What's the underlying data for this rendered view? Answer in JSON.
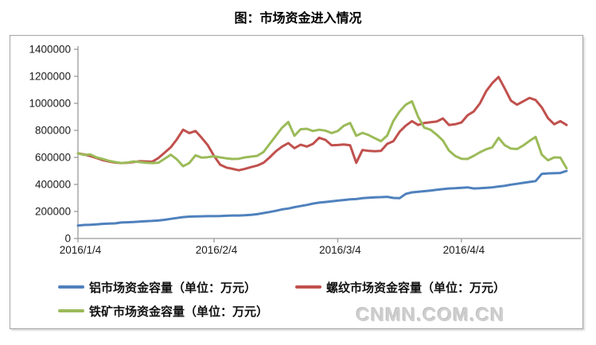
{
  "page": {
    "title": "图：市场资金进入情况",
    "watermark": "CNMN.COM.CN"
  },
  "chart_data": {
    "type": "line",
    "title": "图：市场资金进入情况",
    "legend_position": "bottom",
    "grid": false,
    "x_axis": {
      "tick_labels": [
        "2016/1/4",
        "2016/2/4",
        "2016/3/4",
        "2016/4/4"
      ],
      "tick_indices": [
        0,
        22,
        42,
        62
      ],
      "num_points": 80
    },
    "y_axis": {
      "min": 0,
      "max": 1400000,
      "ticks": [
        0,
        200000,
        400000,
        600000,
        800000,
        1000000,
        1200000,
        1400000
      ]
    },
    "series": [
      {
        "id": "aluminum",
        "name": "铝市场资金容量（单位：万元）",
        "color": "#4F81BD",
        "values": [
          95000,
          100000,
          102000,
          105000,
          108000,
          110000,
          112000,
          118000,
          120000,
          122000,
          125000,
          128000,
          130000,
          133000,
          138000,
          145000,
          152000,
          158000,
          162000,
          163000,
          164000,
          165000,
          165000,
          166000,
          168000,
          170000,
          170000,
          172000,
          175000,
          180000,
          188000,
          196000,
          205000,
          215000,
          222000,
          232000,
          240000,
          248000,
          258000,
          265000,
          270000,
          275000,
          280000,
          285000,
          290000,
          292000,
          298000,
          302000,
          305000,
          306000,
          308000,
          300000,
          298000,
          330000,
          341000,
          346000,
          350000,
          355000,
          360000,
          365000,
          370000,
          372000,
          375000,
          378000,
          370000,
          372000,
          375000,
          378000,
          385000,
          390000,
          398000,
          405000,
          412000,
          418000,
          425000,
          478000,
          482000,
          483000,
          485000,
          500000
        ]
      },
      {
        "id": "rebar",
        "name": "螺纹市场资金容量（单位：万元）",
        "color": "#C0504D",
        "values": [
          630000,
          622000,
          610000,
          595000,
          580000,
          570000,
          562000,
          558000,
          560000,
          565000,
          572000,
          570000,
          568000,
          595000,
          635000,
          675000,
          735000,
          805000,
          780000,
          795000,
          745000,
          690000,
          610000,
          545000,
          525000,
          515000,
          505000,
          515000,
          528000,
          540000,
          560000,
          600000,
          645000,
          680000,
          706000,
          668000,
          694000,
          680000,
          700000,
          745000,
          730000,
          690000,
          692000,
          695000,
          690000,
          560000,
          655000,
          648000,
          645000,
          648000,
          700000,
          720000,
          790000,
          835000,
          868000,
          840000,
          855000,
          860000,
          865000,
          888000,
          840000,
          845000,
          858000,
          912000,
          940000,
          1000000,
          1090000,
          1150000,
          1195000,
          1110000,
          1020000,
          990000,
          1015000,
          1040000,
          1025000,
          970000,
          890000,
          845000,
          868000,
          840000
        ]
      },
      {
        "id": "iron-ore",
        "name": "铁矿市场资金容量（单位：万元）",
        "color": "#9BBB59",
        "values": [
          630000,
          618000,
          622000,
          600000,
          588000,
          575000,
          565000,
          558000,
          562000,
          570000,
          565000,
          560000,
          558000,
          560000,
          590000,
          620000,
          585000,
          535000,
          558000,
          615000,
          598000,
          602000,
          608000,
          600000,
          593000,
          588000,
          590000,
          600000,
          606000,
          612000,
          640000,
          700000,
          760000,
          820000,
          862000,
          760000,
          808000,
          812000,
          795000,
          805000,
          798000,
          780000,
          795000,
          835000,
          855000,
          760000,
          782000,
          765000,
          742000,
          720000,
          762000,
          870000,
          940000,
          990000,
          1015000,
          900000,
          820000,
          805000,
          768000,
          725000,
          650000,
          610000,
          590000,
          588000,
          612000,
          638000,
          660000,
          675000,
          745000,
          690000,
          665000,
          662000,
          688000,
          722000,
          752000,
          620000,
          578000,
          600000,
          598000,
          520000
        ]
      }
    ]
  }
}
